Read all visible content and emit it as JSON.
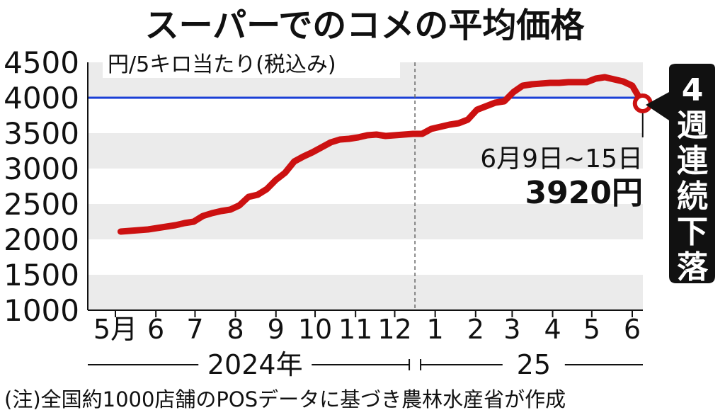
{
  "chart_data": {
    "type": "line",
    "title": "スーパーでのコメの平均価格",
    "ylabel": "円/5キロ当たり(税込み)",
    "ylim": [
      1000,
      4500
    ],
    "yticks": [
      "4500",
      "4000",
      "3500",
      "3000",
      "2500",
      "2000",
      "1500",
      "1000"
    ],
    "grid": "alternating horizontal bands",
    "xticks": [
      {
        "label": "5月",
        "month": "2024-05"
      },
      {
        "label": "6",
        "month": "2024-06"
      },
      {
        "label": "7",
        "month": "2024-07"
      },
      {
        "label": "8",
        "month": "2024-08"
      },
      {
        "label": "9",
        "month": "2024-09"
      },
      {
        "label": "10",
        "month": "2024-10"
      },
      {
        "label": "11",
        "month": "2024-11"
      },
      {
        "label": "12",
        "month": "2024-12"
      },
      {
        "label": "1",
        "month": "2025-01"
      },
      {
        "label": "2",
        "month": "2025-02"
      },
      {
        "label": "3",
        "month": "2025-03"
      },
      {
        "label": "4",
        "month": "2025-04"
      },
      {
        "label": "5",
        "month": "2025-05"
      },
      {
        "label": "6",
        "month": "2025-06"
      }
    ],
    "years": [
      {
        "label": "2024年",
        "from": "2024-05",
        "to": "2024-12"
      },
      {
        "label": "25",
        "from": "2025-01",
        "to": "2025-06"
      }
    ],
    "reference_line": {
      "y": 4000,
      "color": "#1a3fd6"
    },
    "series": [
      {
        "color": "#cc1111",
        "points": [
          {
            "x": "2024-05-05",
            "y": 2110
          },
          {
            "x": "2024-05-12",
            "y": 2120
          },
          {
            "x": "2024-05-19",
            "y": 2130
          },
          {
            "x": "2024-05-26",
            "y": 2140
          },
          {
            "x": "2024-06-02",
            "y": 2160
          },
          {
            "x": "2024-06-09",
            "y": 2180
          },
          {
            "x": "2024-06-16",
            "y": 2200
          },
          {
            "x": "2024-06-23",
            "y": 2230
          },
          {
            "x": "2024-06-30",
            "y": 2250
          },
          {
            "x": "2024-07-07",
            "y": 2330
          },
          {
            "x": "2024-07-14",
            "y": 2370
          },
          {
            "x": "2024-07-21",
            "y": 2400
          },
          {
            "x": "2024-07-28",
            "y": 2420
          },
          {
            "x": "2024-08-04",
            "y": 2480
          },
          {
            "x": "2024-08-11",
            "y": 2600
          },
          {
            "x": "2024-08-18",
            "y": 2630
          },
          {
            "x": "2024-08-25",
            "y": 2710
          },
          {
            "x": "2024-09-01",
            "y": 2840
          },
          {
            "x": "2024-09-08",
            "y": 2940
          },
          {
            "x": "2024-09-15",
            "y": 3100
          },
          {
            "x": "2024-09-22",
            "y": 3170
          },
          {
            "x": "2024-09-29",
            "y": 3230
          },
          {
            "x": "2024-10-06",
            "y": 3300
          },
          {
            "x": "2024-10-13",
            "y": 3370
          },
          {
            "x": "2024-10-20",
            "y": 3410
          },
          {
            "x": "2024-10-27",
            "y": 3420
          },
          {
            "x": "2024-11-03",
            "y": 3440
          },
          {
            "x": "2024-11-10",
            "y": 3470
          },
          {
            "x": "2024-11-17",
            "y": 3480
          },
          {
            "x": "2024-11-24",
            "y": 3460
          },
          {
            "x": "2024-12-01",
            "y": 3470
          },
          {
            "x": "2024-12-08",
            "y": 3480
          },
          {
            "x": "2024-12-15",
            "y": 3490
          },
          {
            "x": "2024-12-22",
            "y": 3490
          },
          {
            "x": "2024-12-29",
            "y": 3560
          },
          {
            "x": "2025-01-05",
            "y": 3590
          },
          {
            "x": "2025-01-12",
            "y": 3620
          },
          {
            "x": "2025-01-19",
            "y": 3640
          },
          {
            "x": "2025-01-26",
            "y": 3690
          },
          {
            "x": "2025-02-02",
            "y": 3830
          },
          {
            "x": "2025-02-09",
            "y": 3880
          },
          {
            "x": "2025-02-16",
            "y": 3930
          },
          {
            "x": "2025-02-23",
            "y": 3950
          },
          {
            "x": "2025-03-02",
            "y": 4080
          },
          {
            "x": "2025-03-09",
            "y": 4170
          },
          {
            "x": "2025-03-16",
            "y": 4190
          },
          {
            "x": "2025-03-23",
            "y": 4200
          },
          {
            "x": "2025-03-30",
            "y": 4210
          },
          {
            "x": "2025-04-06",
            "y": 4210
          },
          {
            "x": "2025-04-13",
            "y": 4220
          },
          {
            "x": "2025-04-20",
            "y": 4220
          },
          {
            "x": "2025-04-27",
            "y": 4220
          },
          {
            "x": "2025-05-04",
            "y": 4270
          },
          {
            "x": "2025-05-11",
            "y": 4290
          },
          {
            "x": "2025-05-18",
            "y": 4260
          },
          {
            "x": "2025-05-25",
            "y": 4230
          },
          {
            "x": "2025-06-01",
            "y": 4170
          },
          {
            "x": "2025-06-09",
            "y": 3920
          }
        ]
      }
    ],
    "highlight": {
      "x": "2025-06-09",
      "y": 3920
    },
    "annotations": {
      "period": "6月9日~15日",
      "value": "3920円",
      "callout": "4週連続下落"
    },
    "note": "(注)全国約1000店舗のPOSデータに基づき農林水産省が作成"
  }
}
